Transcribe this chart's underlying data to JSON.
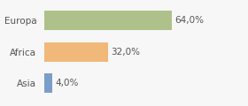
{
  "categories": [
    "Europa",
    "Africa",
    "Asia"
  ],
  "values": [
    64.0,
    32.0,
    4.0
  ],
  "labels": [
    "64,0%",
    "32,0%",
    "4,0%"
  ],
  "bar_colors": [
    "#afc18a",
    "#f0b97a",
    "#7b9ec9"
  ],
  "background_color": "#f7f7f7",
  "xlim": [
    0,
    100
  ],
  "bar_height": 0.62,
  "label_fontsize": 7.5,
  "tick_fontsize": 7.5,
  "tick_color": "#555555",
  "label_color": "#555555"
}
